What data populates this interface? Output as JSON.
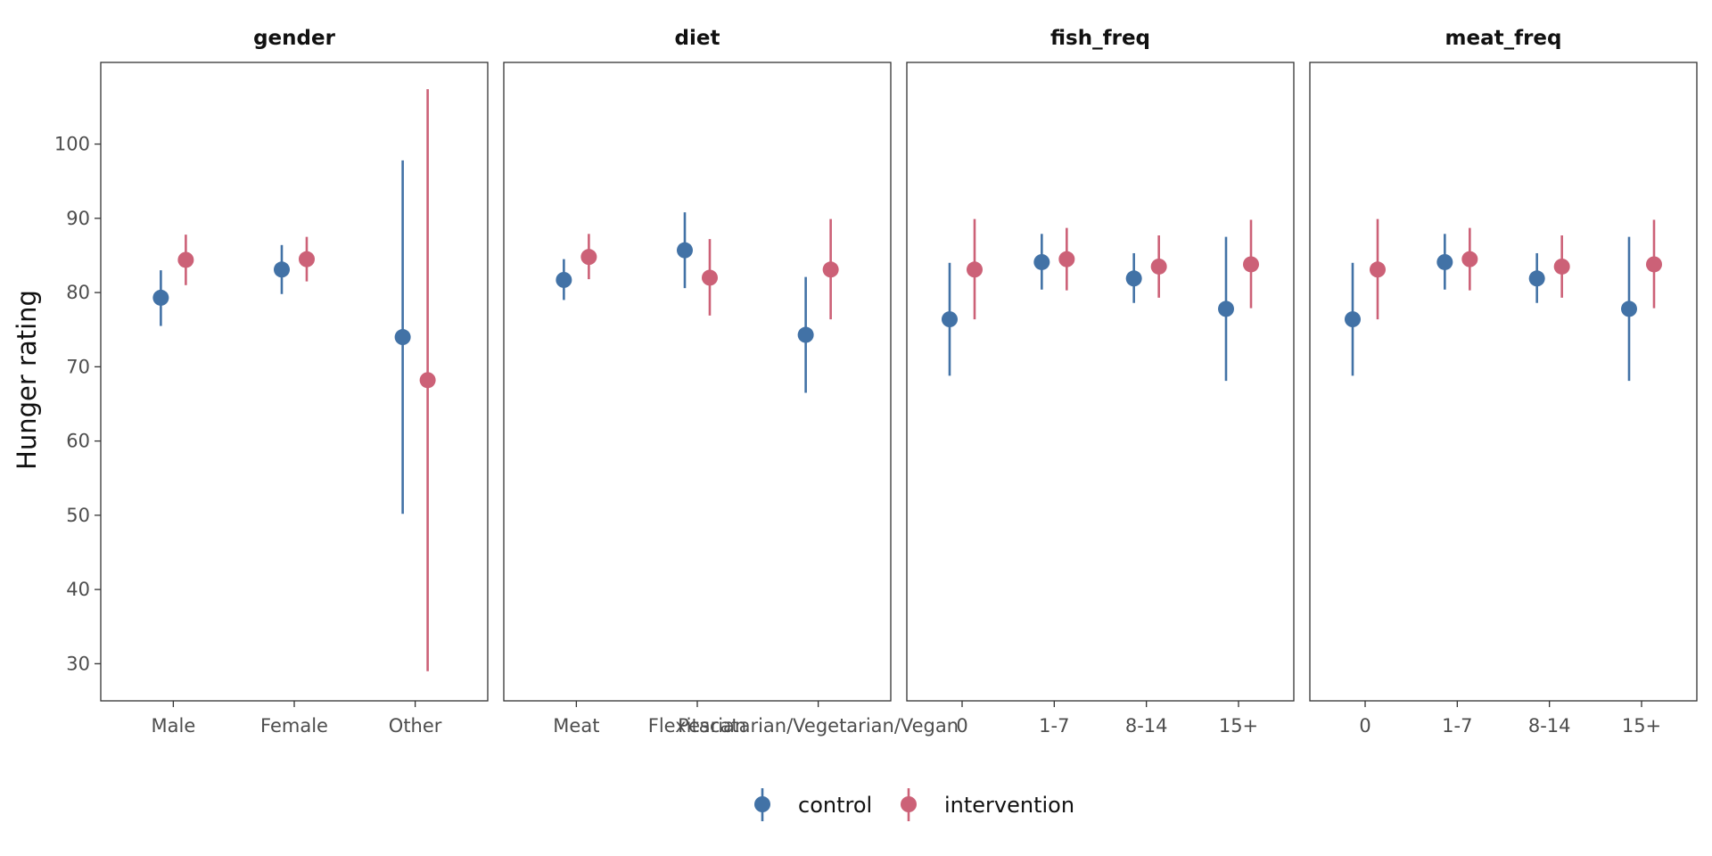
{
  "chart_data": {
    "type": "scatter",
    "subtype": "pointrange",
    "ylabel": "Hunger rating",
    "ylim": [
      25,
      111
    ],
    "yticks": [
      30,
      40,
      50,
      60,
      70,
      80,
      90,
      100
    ],
    "grid": false,
    "legend_position": "bottom",
    "colors": {
      "control": "#4272a6",
      "intervention": "#cc6177"
    },
    "series": [
      {
        "name": "control"
      },
      {
        "name": "intervention"
      }
    ],
    "panels": [
      {
        "title": "gender",
        "categories": [
          "Male",
          "Female",
          "Other"
        ],
        "control": [
          {
            "y": 79.3,
            "lo": 75.5,
            "hi": 83.0
          },
          {
            "y": 83.1,
            "lo": 79.8,
            "hi": 86.4
          },
          {
            "y": 74.0,
            "lo": 50.2,
            "hi": 97.8
          }
        ],
        "intervention": [
          {
            "y": 84.4,
            "lo": 81.0,
            "hi": 87.8
          },
          {
            "y": 84.5,
            "lo": 81.5,
            "hi": 87.5
          },
          {
            "y": 68.2,
            "lo": 29.0,
            "hi": 107.4
          }
        ]
      },
      {
        "title": "diet",
        "categories": [
          "Meat",
          "Flexitarian",
          "Pescatarian/Vegetarian/Vegan"
        ],
        "control": [
          {
            "y": 81.7,
            "lo": 79.0,
            "hi": 84.5
          },
          {
            "y": 85.7,
            "lo": 80.6,
            "hi": 90.8
          },
          {
            "y": 74.3,
            "lo": 66.5,
            "hi": 82.1
          }
        ],
        "intervention": [
          {
            "y": 84.8,
            "lo": 81.8,
            "hi": 87.9
          },
          {
            "y": 82.0,
            "lo": 76.9,
            "hi": 87.2
          },
          {
            "y": 83.1,
            "lo": 76.4,
            "hi": 89.9
          }
        ]
      },
      {
        "title": "fish_freq",
        "categories": [
          "0",
          "1-7",
          "8-14",
          "15+"
        ],
        "control": [
          {
            "y": 76.4,
            "lo": 68.8,
            "hi": 84.0
          },
          {
            "y": 84.1,
            "lo": 80.4,
            "hi": 87.9
          },
          {
            "y": 81.9,
            "lo": 78.6,
            "hi": 85.3
          },
          {
            "y": 77.8,
            "lo": 68.1,
            "hi": 87.5
          }
        ],
        "intervention": [
          {
            "y": 83.1,
            "lo": 76.4,
            "hi": 89.9
          },
          {
            "y": 84.5,
            "lo": 80.3,
            "hi": 88.7
          },
          {
            "y": 83.5,
            "lo": 79.3,
            "hi": 87.7
          },
          {
            "y": 83.8,
            "lo": 77.9,
            "hi": 89.8
          }
        ]
      },
      {
        "title": "meat_freq",
        "categories": [
          "0",
          "1-7",
          "8-14",
          "15+"
        ],
        "control": [
          {
            "y": 76.4,
            "lo": 68.8,
            "hi": 84.0
          },
          {
            "y": 84.1,
            "lo": 80.4,
            "hi": 87.9
          },
          {
            "y": 81.9,
            "lo": 78.6,
            "hi": 85.3
          },
          {
            "y": 77.8,
            "lo": 68.1,
            "hi": 87.5
          }
        ],
        "intervention": [
          {
            "y": 83.1,
            "lo": 76.4,
            "hi": 89.9
          },
          {
            "y": 84.5,
            "lo": 80.3,
            "hi": 88.7
          },
          {
            "y": 83.5,
            "lo": 79.3,
            "hi": 87.7
          },
          {
            "y": 83.8,
            "lo": 77.9,
            "hi": 89.8
          }
        ]
      }
    ]
  }
}
